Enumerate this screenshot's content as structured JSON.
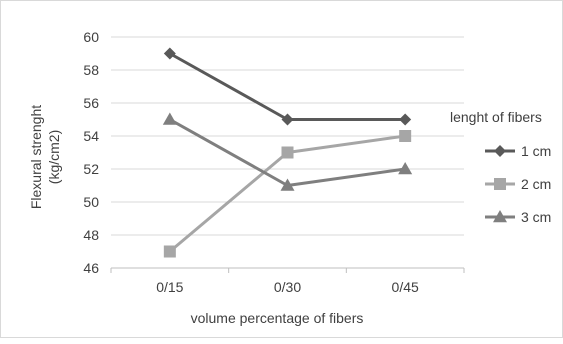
{
  "chart_data": {
    "type": "line",
    "categories": [
      "0/15",
      "0/30",
      "0/45"
    ],
    "series": [
      {
        "name": "1 cm",
        "values": [
          59,
          55,
          55
        ],
        "color": "#595959",
        "marker": "diamond"
      },
      {
        "name": "2 cm",
        "values": [
          47,
          53,
          54
        ],
        "color": "#a6a6a6",
        "marker": "square"
      },
      {
        "name": "3 cm",
        "values": [
          55,
          51,
          52
        ],
        "color": "#7f7f7f",
        "marker": "triangle"
      }
    ],
    "title": "",
    "xlabel": "volume percentage of fibers",
    "ylabel_lines": [
      "Flexural strenght",
      "(kg/cm2)"
    ],
    "ylim": [
      46,
      60
    ],
    "yticks": [
      "46",
      "48",
      "50",
      "52",
      "54",
      "56",
      "58",
      "60"
    ],
    "grid": true,
    "legend_title": "lenght of fibers",
    "legend_position": "right"
  }
}
